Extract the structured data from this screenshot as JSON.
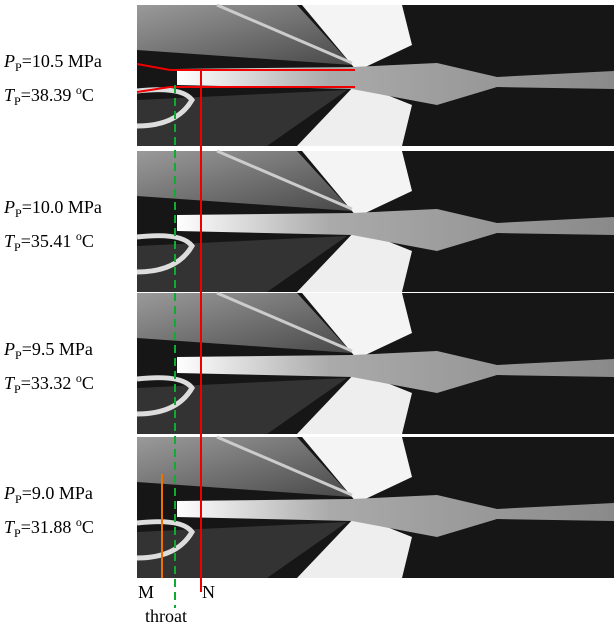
{
  "symbols": {
    "pressure": "P",
    "temperature": "T",
    "subscript": "P",
    "degree": "o",
    "celsius": "C"
  },
  "panels": [
    {
      "pressure": "=10.5 MPa",
      "temperature": "=38.39 "
    },
    {
      "pressure": "=10.0 MPa",
      "temperature": "=35.41 "
    },
    {
      "pressure": "=9.5 MPa",
      "temperature": "=33.32 "
    },
    {
      "pressure": "=9.0 MPa",
      "temperature": "=31.88 "
    }
  ],
  "markers": {
    "m": "M",
    "n": "N",
    "throat": "throat"
  }
}
